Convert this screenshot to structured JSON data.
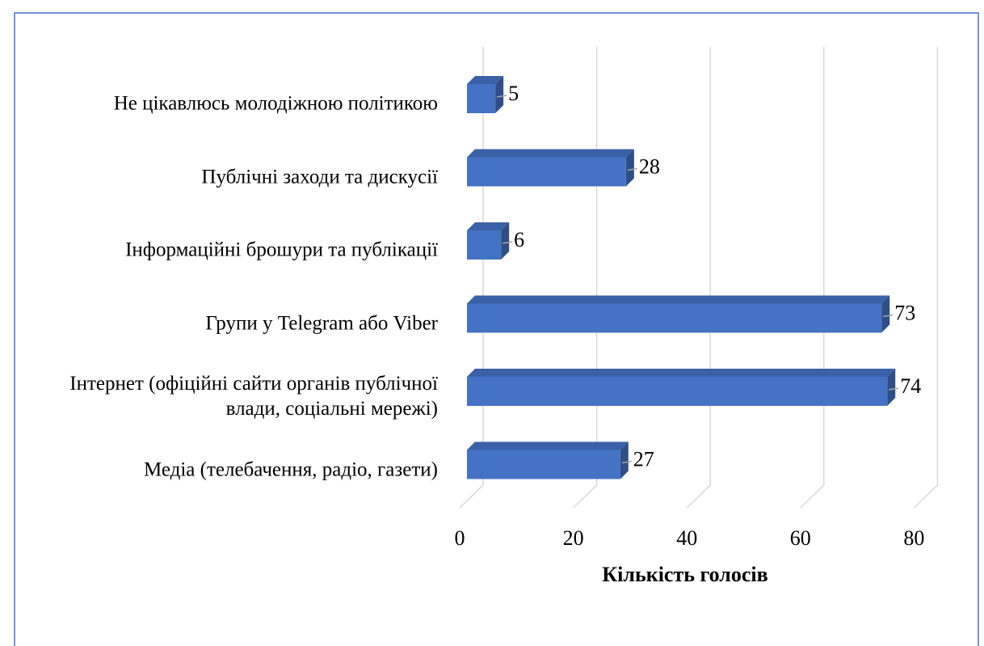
{
  "chart_data": {
    "type": "bar3d",
    "orientation": "horizontal",
    "categories": [
      "Не цікавлюсь молодіжною політикою",
      "Публічні заходи та дискусії",
      "Інформаційні брошури та публікації",
      "Групи у Telegram або Viber",
      "Інтернет (офіційні сайти органів публічної влади, соціальні мережі)",
      "Медіа (телебачення, радіо, газети)"
    ],
    "values": [
      5,
      28,
      6,
      73,
      74,
      27
    ],
    "color": "#4472c4",
    "xlim": [
      0,
      80
    ],
    "xticks": [
      0,
      20,
      40,
      60,
      80
    ],
    "grid": true,
    "xlabel": "Кількість голосів"
  }
}
